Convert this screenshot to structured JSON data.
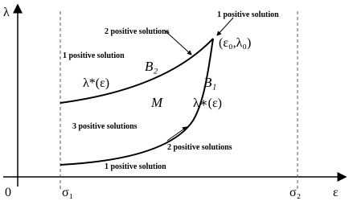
{
  "axes": {
    "y_label": "λ",
    "x_label": "ε",
    "origin": "0",
    "sigma1": "σ₁",
    "sigma2": "σ₂"
  },
  "regions": {
    "top_right": "1 positive solution",
    "between_upper": "2 positive solutions",
    "above_upper": "1 positive solution",
    "between_curves": "3 positive solutions",
    "between_lower": "2 positive solutions",
    "below_lower": "1 positive solution"
  },
  "curves": {
    "upper": "λ*(ε)",
    "lower": "λ∗(ε)",
    "upper_branch": "B₂",
    "lower_branch": "B₁",
    "region": "M",
    "cusp": "(ε₀,λ₀)"
  }
}
